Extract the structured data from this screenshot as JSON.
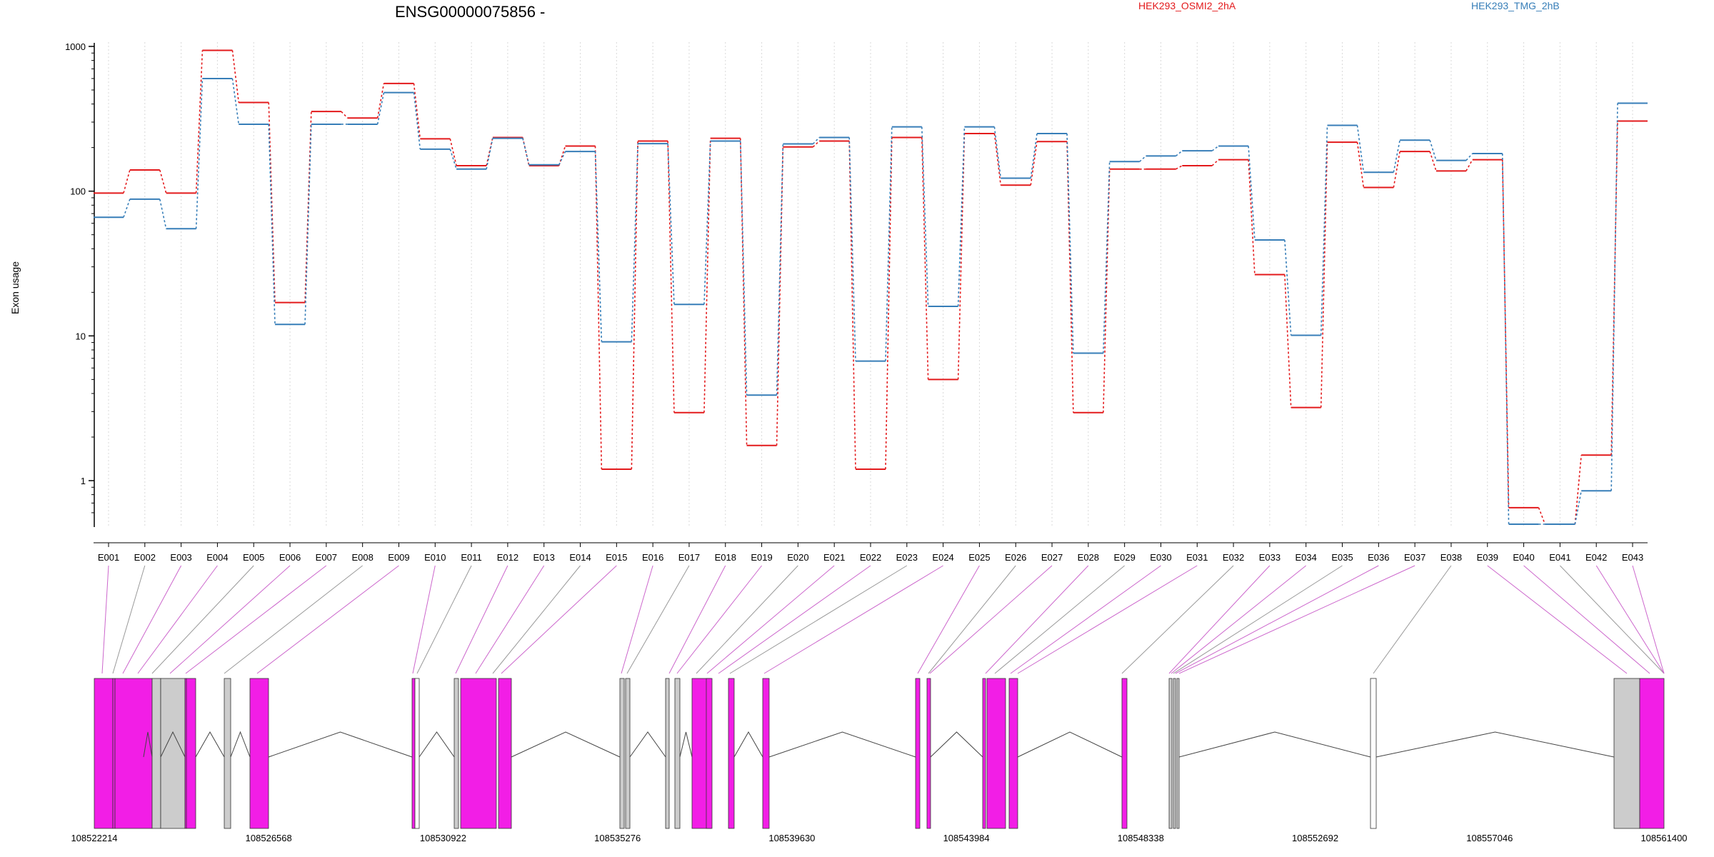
{
  "chart_data": {
    "type": "line",
    "title": "ENSG00000075856 -",
    "ylabel": "Exon usage",
    "xlabel": "",
    "yscale": "log",
    "ylim": [
      0.5,
      1000
    ],
    "yticks": [
      1,
      10,
      100,
      1000
    ],
    "ytick_labels": [
      "1",
      "10",
      "100",
      "1000"
    ],
    "grid": "vertical-dotted",
    "legend_placement": "top",
    "categories": [
      "E001",
      "E002",
      "E003",
      "E004",
      "E005",
      "E006",
      "E007",
      "E008",
      "E009",
      "E010",
      "E011",
      "E012",
      "E013",
      "E014",
      "E015",
      "E016",
      "E017",
      "E018",
      "E019",
      "E020",
      "E021",
      "E022",
      "E023",
      "E024",
      "E025",
      "E026",
      "E027",
      "E028",
      "E029",
      "E030",
      "E031",
      "E032",
      "E033",
      "E034",
      "E035",
      "E036",
      "E037",
      "E038",
      "E039",
      "E040",
      "E041",
      "E042",
      "E043"
    ],
    "series": [
      {
        "name": "HEK293_OSMI2_2hA",
        "color": "#e31a1c",
        "values": [
          97,
          140,
          97,
          940,
          410,
          17,
          355,
          320,
          555,
          230,
          150,
          235,
          150,
          205,
          1.2,
          222,
          2.95,
          232,
          1.75,
          202,
          222,
          1.2,
          235,
          5,
          250,
          110,
          220,
          2.95,
          142,
          142,
          150,
          165,
          26.5,
          3.2,
          218,
          106,
          188,
          138,
          165,
          0.65,
          0.5,
          1.5,
          305
        ]
      },
      {
        "name": "HEK293_TMG_2hB",
        "color": "#377eb8",
        "values": [
          66,
          88,
          55,
          600,
          290,
          12,
          290,
          290,
          480,
          195,
          142,
          232,
          152,
          188,
          9.1,
          213,
          16.5,
          222,
          3.9,
          212,
          235,
          6.7,
          278,
          16,
          278,
          123,
          250,
          7.6,
          160,
          175,
          190,
          205,
          46,
          10.1,
          285,
          135,
          225,
          163,
          182,
          0.5,
          0.5,
          0.85,
          405
        ]
      }
    ],
    "gene_model": {
      "coordinate_labels": [
        "108522214",
        "108526568",
        "108530922",
        "108535276",
        "108539630",
        "108543984",
        "108548338",
        "108552692",
        "108557046",
        "108561400"
      ],
      "colors": {
        "significant": "#f21ee6",
        "nonsignificant": "#cccccc"
      }
    }
  }
}
